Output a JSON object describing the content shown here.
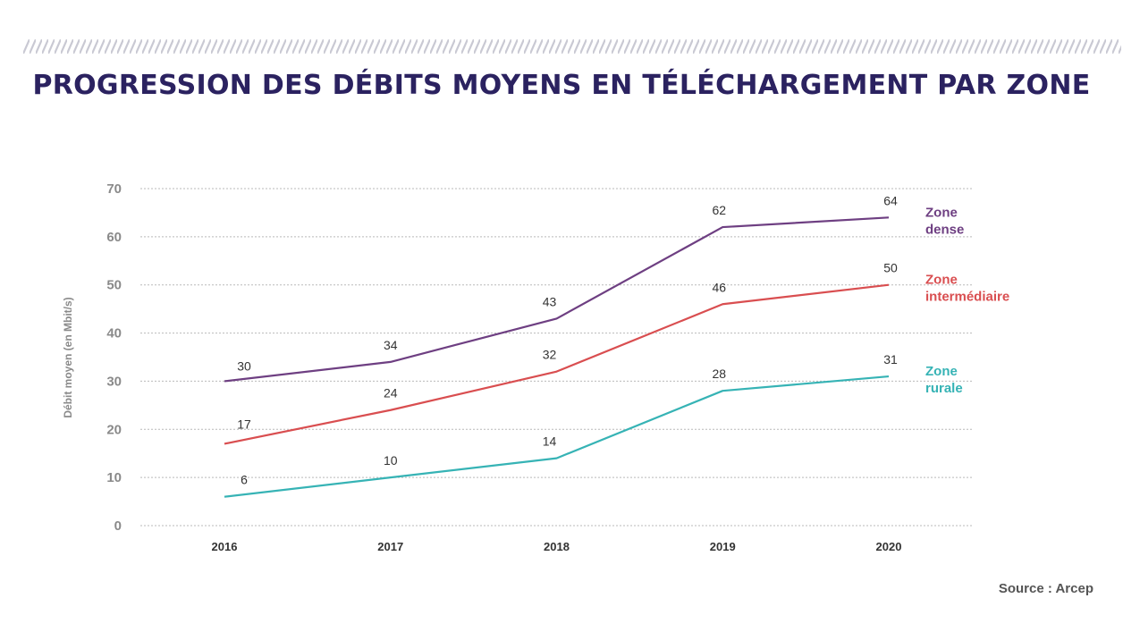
{
  "title": "PROGRESSION DES DÉBITS MOYENS EN TÉLÉCHARGEMENT PAR ZONE",
  "source": "Source : Arcep",
  "chart_data": {
    "type": "line",
    "title": "PROGRESSION DES DÉBITS MOYENS EN TÉLÉCHARGEMENT PAR ZONE",
    "xlabel": "",
    "ylabel": "Débit moyen (en Mbit/s)",
    "categories": [
      "2016",
      "2017",
      "2018",
      "2019",
      "2020"
    ],
    "ylim": [
      0,
      70
    ],
    "yticks": [
      0,
      10,
      20,
      30,
      40,
      50,
      60,
      70
    ],
    "grid": true,
    "legend_position": "right",
    "series": [
      {
        "name": "Zone dense",
        "legend_lines": [
          "Zone",
          "dense"
        ],
        "color": "#6e3f82",
        "values": [
          30,
          34,
          43,
          62,
          64
        ]
      },
      {
        "name": "Zone intermédiaire",
        "legend_lines": [
          "Zone",
          "intermédiaire"
        ],
        "color": "#d94e50",
        "values": [
          17,
          24,
          32,
          46,
          50
        ]
      },
      {
        "name": "Zone rurale",
        "legend_lines": [
          "Zone",
          "rurale"
        ],
        "color": "#36b3b5",
        "values": [
          6,
          10,
          14,
          28,
          31
        ]
      }
    ]
  }
}
